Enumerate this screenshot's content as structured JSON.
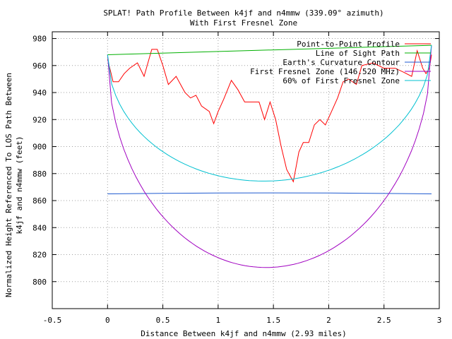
{
  "chart_data": {
    "type": "line",
    "title": "SPLAT! Path Profile Between k4jf and n4mmw (339.09° azimuth)",
    "subtitle": "With First Fresnel Zone",
    "xlabel": "Distance Between k4jf and n4mmw (2.93 miles)",
    "ylabel_line1": "Normalized Height Referenced To LOS Path Between",
    "ylabel_line2": "k4jf and n4mmw (feet)",
    "xlim": [
      -0.5,
      3
    ],
    "ylim": [
      780,
      985
    ],
    "xticks": [
      -0.5,
      0,
      0.5,
      1,
      1.5,
      2,
      2.5,
      3
    ],
    "xtick_labels": [
      "-0.5",
      "0",
      "0.5",
      "1",
      "1.5",
      "2",
      "2.5",
      "3"
    ],
    "yticks": [
      800,
      820,
      840,
      860,
      880,
      900,
      920,
      940,
      960,
      980
    ],
    "ytick_labels": [
      "800",
      "820",
      "840",
      "860",
      "880",
      "900",
      "920",
      "940",
      "960",
      "980"
    ],
    "grid": true,
    "legend_position": "top-right",
    "series": [
      {
        "name": "Point-to-Point Profile",
        "color": "#ff0000",
        "kind": "polyline",
        "points": [
          [
            0.0,
            965
          ],
          [
            0.05,
            948
          ],
          [
            0.1,
            948
          ],
          [
            0.15,
            954
          ],
          [
            0.2,
            958
          ],
          [
            0.27,
            962
          ],
          [
            0.33,
            952
          ],
          [
            0.4,
            972
          ],
          [
            0.45,
            972
          ],
          [
            0.5,
            960
          ],
          [
            0.55,
            946
          ],
          [
            0.62,
            952
          ],
          [
            0.7,
            940
          ],
          [
            0.75,
            936
          ],
          [
            0.8,
            938
          ],
          [
            0.85,
            930
          ],
          [
            0.92,
            926
          ],
          [
            0.96,
            917
          ],
          [
            1.0,
            926
          ],
          [
            1.05,
            935
          ],
          [
            1.12,
            949
          ],
          [
            1.18,
            942
          ],
          [
            1.24,
            933
          ],
          [
            1.3,
            933
          ],
          [
            1.37,
            933
          ],
          [
            1.42,
            920
          ],
          [
            1.47,
            933
          ],
          [
            1.52,
            920
          ],
          [
            1.57,
            900
          ],
          [
            1.62,
            883
          ],
          [
            1.68,
            874
          ],
          [
            1.73,
            896
          ],
          [
            1.77,
            903
          ],
          [
            1.82,
            903
          ],
          [
            1.87,
            916
          ],
          [
            1.92,
            920
          ],
          [
            1.97,
            916
          ],
          [
            2.02,
            925
          ],
          [
            2.08,
            936
          ],
          [
            2.13,
            948
          ],
          [
            2.18,
            950
          ],
          [
            2.25,
            946
          ],
          [
            2.3,
            960
          ],
          [
            2.4,
            962
          ],
          [
            2.5,
            958
          ],
          [
            2.6,
            958
          ],
          [
            2.68,
            955
          ],
          [
            2.75,
            952
          ],
          [
            2.8,
            971
          ],
          [
            2.85,
            958
          ],
          [
            2.88,
            954
          ],
          [
            2.91,
            958
          ],
          [
            2.93,
            968
          ]
        ]
      },
      {
        "name": "Line of Sight Path",
        "color": "#00b000",
        "kind": "polyline",
        "points": [
          [
            0.0,
            968
          ],
          [
            2.93,
            975
          ]
        ]
      },
      {
        "name": "Earth's Curvature Contour",
        "color": "#1e5ad0",
        "kind": "polyline",
        "points": [
          [
            0.0,
            865
          ],
          [
            0.5,
            865.4
          ],
          [
            1.0,
            865.6
          ],
          [
            1.465,
            865.7
          ],
          [
            2.0,
            865.6
          ],
          [
            2.5,
            865.3
          ],
          [
            2.93,
            865
          ]
        ]
      },
      {
        "name": "First Fresnel Zone (146.520 MHz)",
        "color": "#a000c0",
        "kind": "parabola",
        "x0": 0.0,
        "y0": 968,
        "x1": 2.93,
        "y1": 975,
        "max_depth": 161
      },
      {
        "name": "60% of First Fresnel Zone",
        "color": "#00c0d0",
        "kind": "parabola",
        "x0": 0.0,
        "y0": 968,
        "x1": 2.93,
        "y1": 975,
        "max_depth": 97
      }
    ]
  }
}
